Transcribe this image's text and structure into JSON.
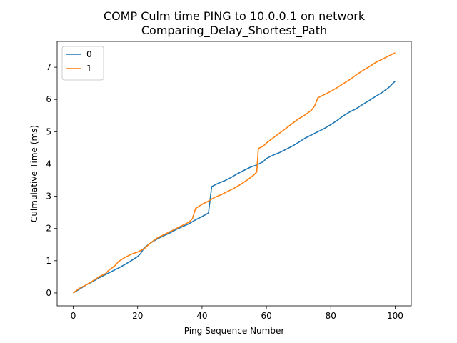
{
  "chart_data": {
    "type": "line",
    "title_line1": "COMP Culm time PING to 10.0.0.1 on network",
    "title_line2": "Comparing_Delay_Shortest_Path",
    "xlabel": "Ping Sequence Number",
    "ylabel": "Culmulative Time (ms)",
    "xlim": [
      -5,
      105
    ],
    "ylim": [
      -0.4,
      7.8
    ],
    "xticks": [
      0,
      20,
      40,
      60,
      80,
      100
    ],
    "yticks": [
      0,
      1,
      2,
      3,
      4,
      5,
      6,
      7
    ],
    "legend_position": "upper-left",
    "series": [
      {
        "name": "0",
        "color": "#1f77b4",
        "points": [
          [
            0,
            0
          ],
          [
            2,
            0.12
          ],
          [
            4,
            0.25
          ],
          [
            6,
            0.35
          ],
          [
            8,
            0.47
          ],
          [
            10,
            0.57
          ],
          [
            12,
            0.67
          ],
          [
            14,
            0.77
          ],
          [
            16,
            0.88
          ],
          [
            18,
            1.0
          ],
          [
            20,
            1.13
          ],
          [
            21,
            1.23
          ],
          [
            22,
            1.4
          ],
          [
            24,
            1.55
          ],
          [
            26,
            1.67
          ],
          [
            28,
            1.77
          ],
          [
            30,
            1.86
          ],
          [
            32,
            1.97
          ],
          [
            34,
            2.06
          ],
          [
            36,
            2.15
          ],
          [
            38,
            2.27
          ],
          [
            40,
            2.37
          ],
          [
            42,
            2.48
          ],
          [
            43,
            3.3
          ],
          [
            45,
            3.4
          ],
          [
            47,
            3.48
          ],
          [
            49,
            3.58
          ],
          [
            51,
            3.7
          ],
          [
            53,
            3.8
          ],
          [
            55,
            3.9
          ],
          [
            57,
            3.97
          ],
          [
            59,
            4.07
          ],
          [
            60,
            4.17
          ],
          [
            62,
            4.27
          ],
          [
            64,
            4.35
          ],
          [
            66,
            4.45
          ],
          [
            68,
            4.55
          ],
          [
            70,
            4.67
          ],
          [
            72,
            4.8
          ],
          [
            74,
            4.9
          ],
          [
            76,
            5.0
          ],
          [
            78,
            5.1
          ],
          [
            80,
            5.22
          ],
          [
            82,
            5.35
          ],
          [
            84,
            5.5
          ],
          [
            86,
            5.62
          ],
          [
            88,
            5.72
          ],
          [
            90,
            5.85
          ],
          [
            92,
            5.97
          ],
          [
            94,
            6.1
          ],
          [
            96,
            6.22
          ],
          [
            98,
            6.37
          ],
          [
            100,
            6.57
          ]
        ]
      },
      {
        "name": "1",
        "color": "#ff7f0e",
        "points": [
          [
            0,
            0
          ],
          [
            2,
            0.15
          ],
          [
            4,
            0.25
          ],
          [
            6,
            0.37
          ],
          [
            8,
            0.5
          ],
          [
            10,
            0.6
          ],
          [
            11,
            0.7
          ],
          [
            13,
            0.85
          ],
          [
            14,
            0.97
          ],
          [
            16,
            1.1
          ],
          [
            18,
            1.2
          ],
          [
            20,
            1.27
          ],
          [
            22,
            1.37
          ],
          [
            24,
            1.55
          ],
          [
            26,
            1.7
          ],
          [
            28,
            1.8
          ],
          [
            30,
            1.9
          ],
          [
            32,
            2.0
          ],
          [
            34,
            2.1
          ],
          [
            36,
            2.2
          ],
          [
            37,
            2.3
          ],
          [
            38,
            2.62
          ],
          [
            40,
            2.75
          ],
          [
            42,
            2.85
          ],
          [
            44,
            2.97
          ],
          [
            46,
            3.05
          ],
          [
            48,
            3.15
          ],
          [
            50,
            3.25
          ],
          [
            52,
            3.37
          ],
          [
            54,
            3.5
          ],
          [
            56,
            3.65
          ],
          [
            57,
            3.75
          ],
          [
            57.5,
            4.48
          ],
          [
            59,
            4.55
          ],
          [
            60,
            4.65
          ],
          [
            62,
            4.8
          ],
          [
            64,
            4.95
          ],
          [
            66,
            5.1
          ],
          [
            68,
            5.25
          ],
          [
            70,
            5.4
          ],
          [
            72,
            5.52
          ],
          [
            74,
            5.67
          ],
          [
            75,
            5.8
          ],
          [
            76,
            6.05
          ],
          [
            78,
            6.15
          ],
          [
            80,
            6.25
          ],
          [
            82,
            6.37
          ],
          [
            84,
            6.5
          ],
          [
            86,
            6.62
          ],
          [
            88,
            6.77
          ],
          [
            90,
            6.9
          ],
          [
            92,
            7.02
          ],
          [
            94,
            7.15
          ],
          [
            96,
            7.25
          ],
          [
            98,
            7.35
          ],
          [
            100,
            7.45
          ]
        ]
      }
    ]
  }
}
